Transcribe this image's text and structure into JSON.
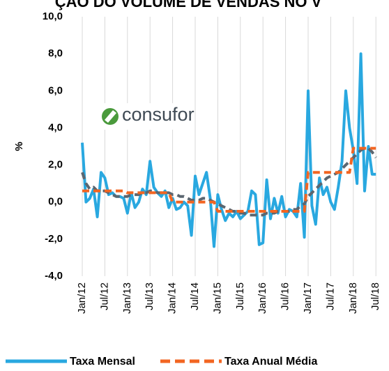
{
  "chart_data": {
    "type": "line",
    "title": "ÇÃO DO VOLUME DE VENDAS NO V",
    "logo": "consufor",
    "ylabel": "%",
    "categories": [
      "Jan/12",
      null,
      null,
      null,
      null,
      null,
      "Jul/12",
      null,
      null,
      null,
      null,
      null,
      "Jan/13",
      null,
      null,
      null,
      null,
      null,
      "Jul/13",
      null,
      null,
      null,
      null,
      null,
      "Jan/14",
      null,
      null,
      null,
      null,
      null,
      "Jul/14",
      null,
      null,
      null,
      null,
      null,
      "Jan/15",
      null,
      null,
      null,
      null,
      null,
      "Jul/15",
      null,
      null,
      null,
      null,
      null,
      "Jan/16",
      null,
      null,
      null,
      null,
      null,
      "Jul/16",
      null,
      null,
      null,
      null,
      null,
      "Jan/17",
      null,
      null,
      null,
      null,
      null,
      "Jul/17",
      null,
      null,
      null,
      null,
      null,
      "Jan/18",
      null,
      null,
      null,
      null,
      null,
      "Jul/18"
    ],
    "series": [
      {
        "name": "Taxa Mensal",
        "color": "#29a8e0",
        "style": "solid",
        "values": [
          3.2,
          0.0,
          0.2,
          0.7,
          -0.8,
          1.6,
          1.3,
          0.4,
          0.5,
          0.3,
          0.3,
          0.2,
          -0.6,
          0.5,
          -0.3,
          0.0,
          0.7,
          0.4,
          2.2,
          0.8,
          0.5,
          0.3,
          0.6,
          -0.3,
          0.2,
          -0.4,
          -0.3,
          0.0,
          -0.2,
          -1.8,
          1.4,
          0.4,
          1.0,
          1.6,
          0.2,
          -2.4,
          0.4,
          -0.4,
          -1.0,
          -0.6,
          -0.8,
          -0.5,
          -0.9,
          -0.7,
          -0.5,
          0.6,
          0.4,
          -2.3,
          -2.2,
          1.2,
          -0.9,
          0.2,
          -0.6,
          0.3,
          -0.8,
          -0.4,
          -0.5,
          -0.8,
          1.0,
          -1.9,
          6.0,
          -0.2,
          -1.2,
          1.3,
          0.4,
          0.8,
          0.0,
          -0.4,
          0.8,
          2.2,
          6.0,
          4.0,
          2.8,
          1.0,
          8.0,
          0.6,
          3.0,
          1.5,
          1.5
        ]
      },
      {
        "color": "#5b6670",
        "style": "dash",
        "values": [
          1.6,
          1.0,
          0.7,
          0.8,
          0.6,
          0.6,
          0.6,
          0.5,
          0.4,
          0.3,
          0.3,
          0.3,
          0.3,
          0.4,
          0.4,
          0.4,
          0.5,
          0.5,
          0.6,
          0.6,
          0.5,
          0.5,
          0.5,
          0.5,
          0.4,
          0.4,
          0.3,
          0.3,
          0.2,
          0.1,
          0.1,
          0.1,
          0.2,
          0.2,
          0.1,
          0.0,
          -0.1,
          -0.2,
          -0.3,
          -0.4,
          -0.5,
          -0.5,
          -0.6,
          -0.6,
          -0.7,
          -0.7,
          -0.7,
          -0.7,
          -0.7,
          -0.6,
          -0.6,
          -0.6,
          -0.5,
          -0.5,
          -0.5,
          -0.5,
          -0.4,
          -0.4,
          -0.2,
          -0.1,
          0.3,
          0.5,
          0.7,
          0.9,
          1.1,
          1.3,
          1.4,
          1.5,
          1.6,
          1.8,
          2.0,
          2.2,
          2.4,
          2.6,
          2.8,
          2.9,
          2.9,
          2.7,
          2.4
        ]
      },
      {
        "name": "Taxa Anual Média",
        "color": "#f26522",
        "style": "dash",
        "values": [
          0.6,
          0.6,
          0.6,
          0.6,
          0.6,
          0.6,
          0.6,
          0.6,
          0.6,
          0.6,
          0.6,
          0.6,
          0.5,
          0.5,
          0.5,
          0.5,
          0.5,
          0.5,
          0.5,
          0.5,
          0.5,
          0.5,
          0.5,
          0.5,
          0.0,
          0.0,
          0.0,
          0.0,
          0.0,
          0.0,
          0.0,
          0.0,
          0.0,
          0.0,
          0.0,
          0.0,
          -0.5,
          -0.5,
          -0.5,
          -0.5,
          -0.5,
          -0.5,
          -0.5,
          -0.5,
          -0.5,
          -0.5,
          -0.5,
          -0.5,
          -0.5,
          -0.5,
          -0.5,
          -0.5,
          -0.5,
          -0.5,
          -0.5,
          -0.5,
          -0.5,
          -0.5,
          -0.5,
          -0.5,
          1.6,
          1.6,
          1.6,
          1.6,
          1.6,
          1.6,
          1.6,
          1.6,
          1.6,
          1.6,
          1.6,
          1.6,
          2.9,
          2.9,
          2.9,
          2.9,
          2.9,
          2.9,
          2.9
        ]
      }
    ],
    "ylim": [
      -4,
      10
    ],
    "yticks": [
      {
        "value": -4,
        "label": "-4,0"
      },
      {
        "value": -2,
        "label": "-2,0"
      },
      {
        "value": 0,
        "label": "0,0"
      },
      {
        "value": 2,
        "label": "2,0"
      },
      {
        "value": 4,
        "label": "4,0"
      },
      {
        "value": 6,
        "label": "6,0"
      },
      {
        "value": 8,
        "label": "8,0"
      },
      {
        "value": 10,
        "label": "10,0"
      }
    ],
    "grid": true
  }
}
